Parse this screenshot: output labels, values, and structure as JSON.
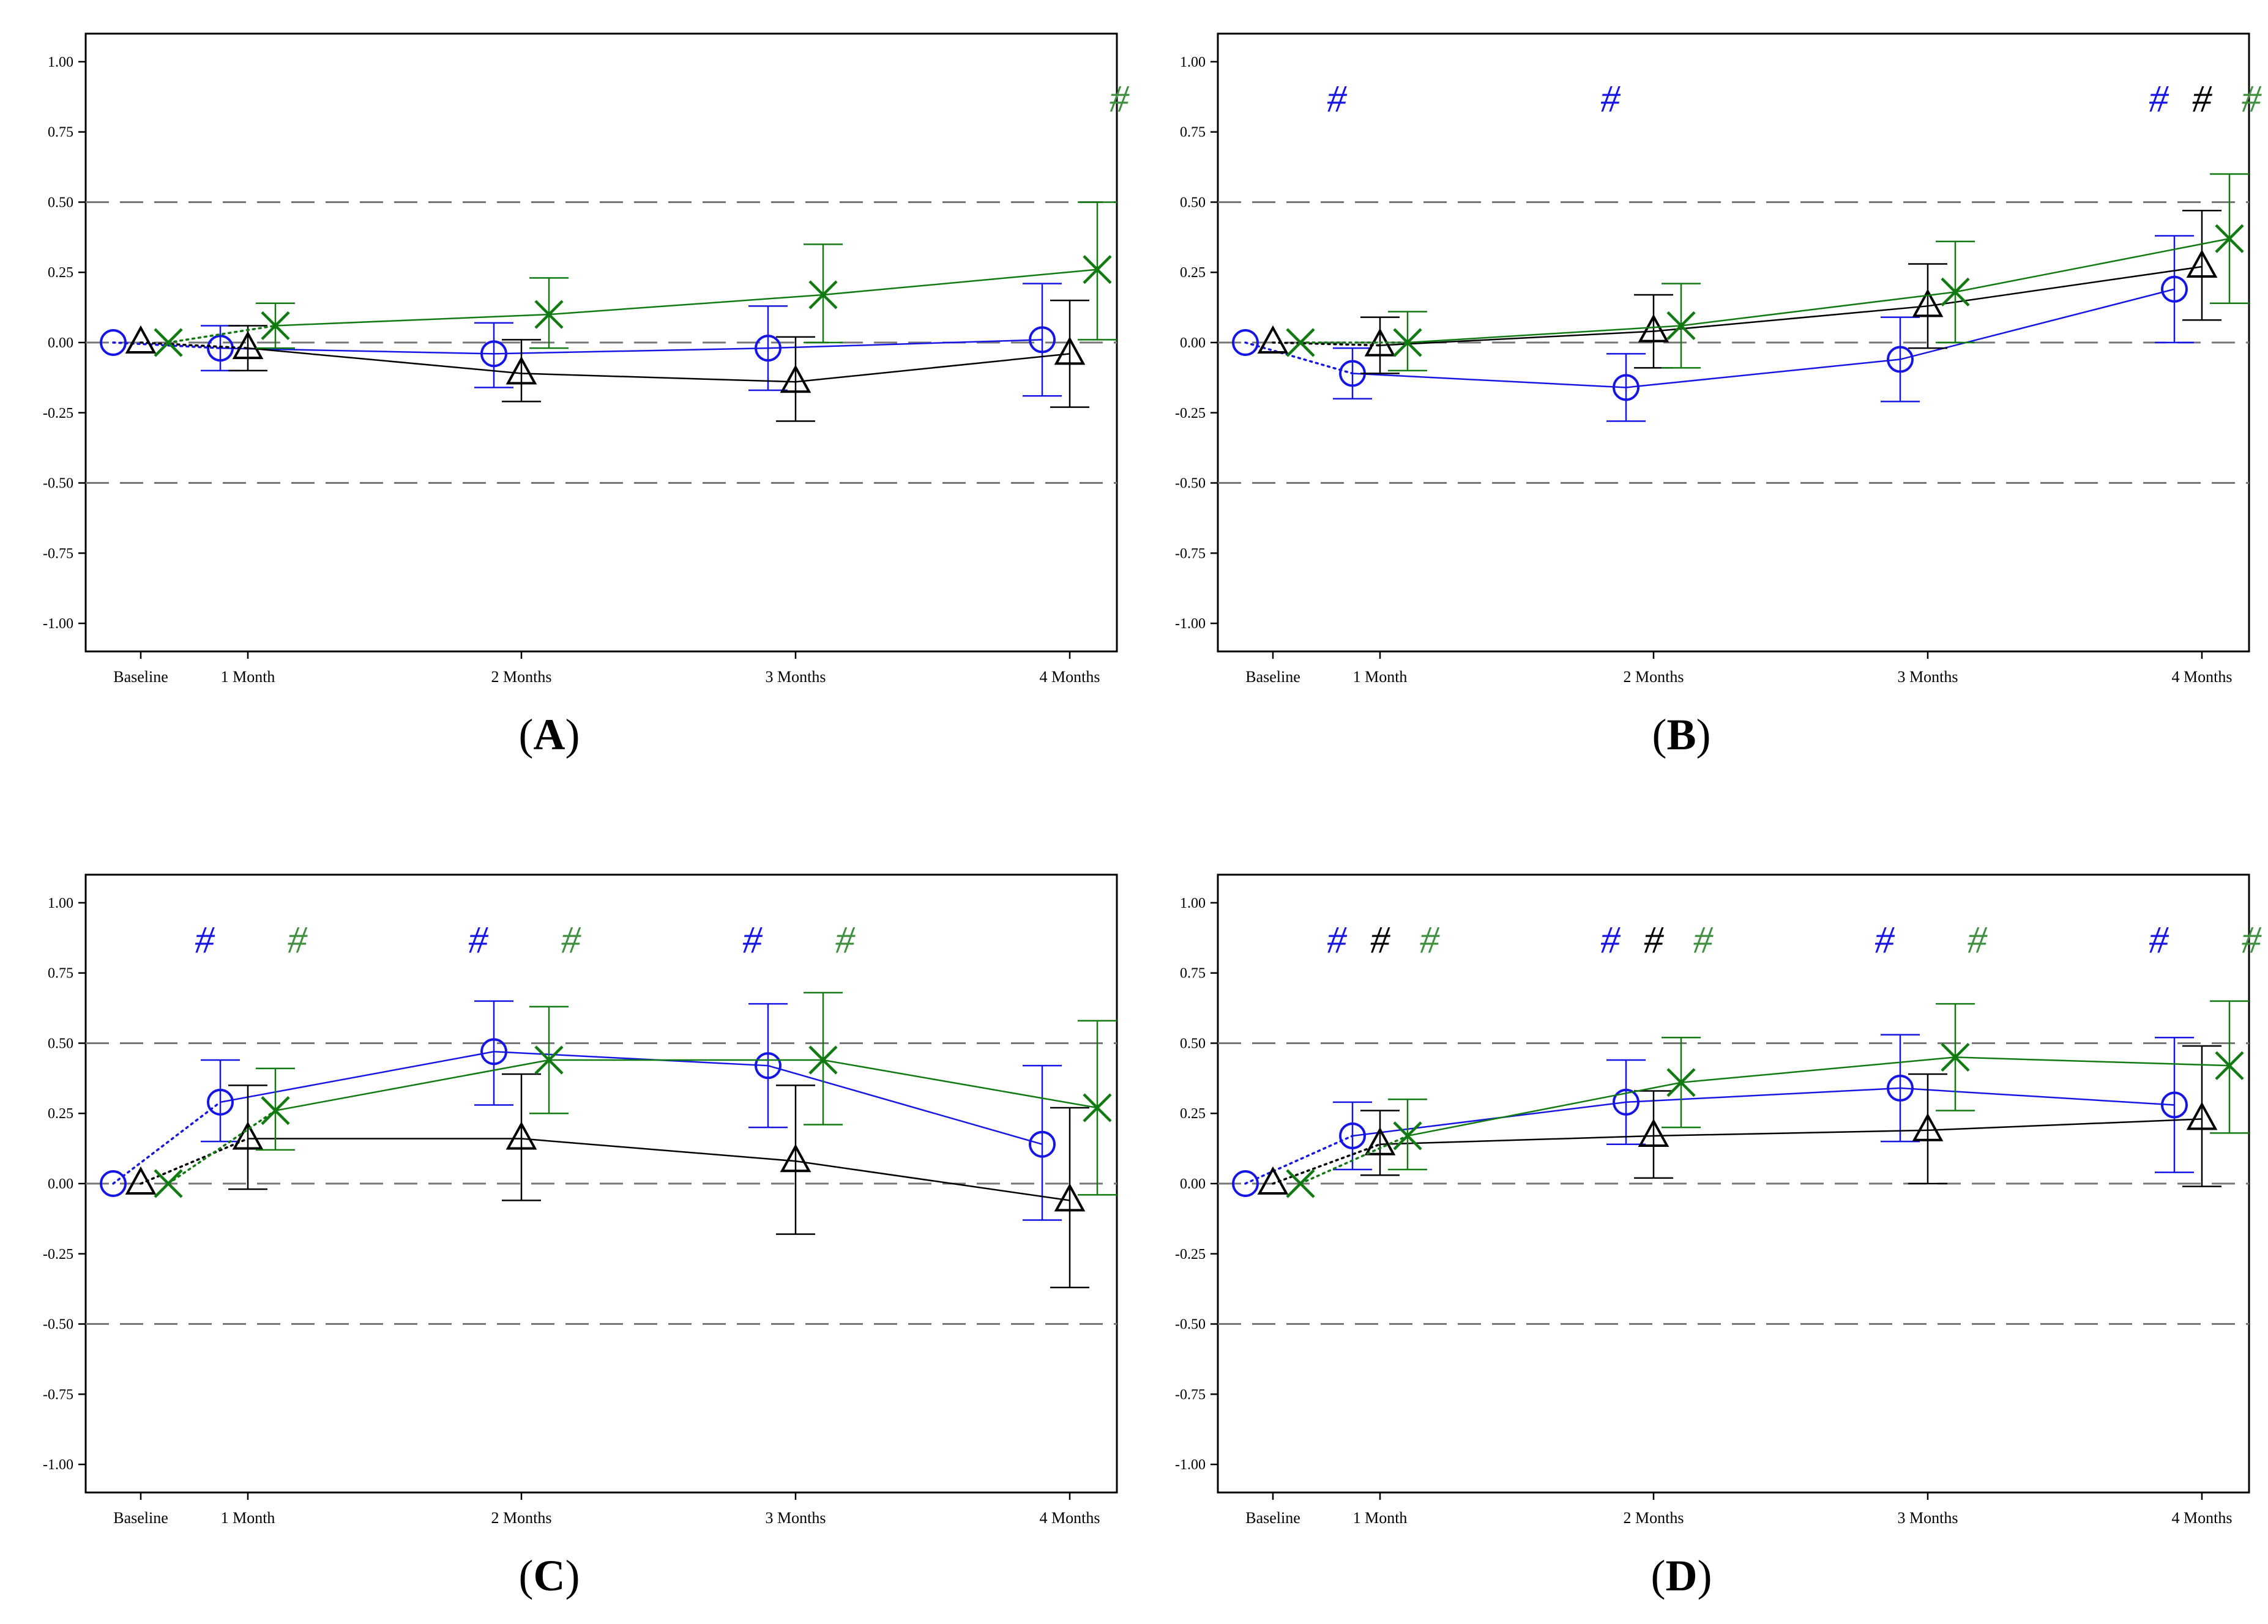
{
  "chart_data": [
    {
      "panel": "A",
      "caption_letter": "A",
      "type": "line",
      "categories": [
        "Baseline",
        "1 Month",
        "2 Months",
        "3 Months",
        "4 Months"
      ],
      "yticks": [
        "1.00",
        "0.75",
        "0.50",
        "0.25",
        "0.00",
        "-0.25",
        "-0.50",
        "-0.75",
        "-1.00"
      ],
      "ylim": [
        -1.1,
        1.1
      ],
      "reference_lines": [
        0.5,
        0.0,
        -0.5
      ],
      "series": [
        {
          "name": "circle",
          "marker": "circle",
          "color": "#1515e6",
          "values": [
            0.0,
            -0.02,
            -0.04,
            -0.02,
            0.01
          ],
          "lower": [
            null,
            -0.1,
            -0.16,
            -0.17,
            -0.19
          ],
          "upper": [
            null,
            0.06,
            0.07,
            0.13,
            0.21
          ]
        },
        {
          "name": "triangle",
          "marker": "triangle",
          "color": "#000000",
          "values": [
            0.0,
            -0.02,
            -0.11,
            -0.14,
            -0.04
          ],
          "lower": [
            null,
            -0.1,
            -0.21,
            -0.28,
            -0.23
          ],
          "upper": [
            null,
            0.06,
            0.01,
            0.02,
            0.15
          ]
        },
        {
          "name": "cross",
          "marker": "cross",
          "color": "#117a11",
          "values": [
            0.0,
            0.06,
            0.1,
            0.17,
            0.26
          ],
          "lower": [
            null,
            -0.02,
            -0.02,
            0.0,
            0.01
          ],
          "upper": [
            null,
            0.14,
            0.23,
            0.35,
            0.5
          ]
        }
      ],
      "significance": [
        {
          "category": "4 Months",
          "series": "cross",
          "symbol": "#"
        }
      ]
    },
    {
      "panel": "B",
      "caption_letter": "B",
      "type": "line",
      "categories": [
        "Baseline",
        "1 Month",
        "2 Months",
        "3 Months",
        "4 Months"
      ],
      "yticks": [
        "1.00",
        "0.75",
        "0.50",
        "0.25",
        "0.00",
        "-0.25",
        "-0.50",
        "-0.75",
        "-1.00"
      ],
      "ylim": [
        -1.1,
        1.1
      ],
      "reference_lines": [
        0.5,
        0.0,
        -0.5
      ],
      "series": [
        {
          "name": "circle",
          "marker": "circle",
          "color": "#1515e6",
          "values": [
            0.0,
            -0.11,
            -0.16,
            -0.06,
            0.19
          ],
          "lower": [
            null,
            -0.2,
            -0.28,
            -0.21,
            0.0
          ],
          "upper": [
            null,
            -0.02,
            -0.04,
            0.09,
            0.38
          ]
        },
        {
          "name": "triangle",
          "marker": "triangle",
          "color": "#000000",
          "values": [
            0.0,
            -0.01,
            0.04,
            0.13,
            0.27
          ],
          "lower": [
            null,
            -0.11,
            -0.09,
            -0.02,
            0.08
          ],
          "upper": [
            null,
            0.09,
            0.17,
            0.28,
            0.47
          ]
        },
        {
          "name": "cross",
          "marker": "cross",
          "color": "#117a11",
          "values": [
            0.0,
            0.0,
            0.06,
            0.18,
            0.37
          ],
          "lower": [
            null,
            -0.1,
            -0.09,
            0.0,
            0.14
          ],
          "upper": [
            null,
            0.11,
            0.21,
            0.36,
            0.6
          ]
        }
      ],
      "significance": [
        {
          "category": "1 Month",
          "series": "circle",
          "symbol": "#"
        },
        {
          "category": "2 Months",
          "series": "circle",
          "symbol": "#"
        },
        {
          "category": "4 Months",
          "series": "circle",
          "symbol": "#"
        },
        {
          "category": "4 Months",
          "series": "triangle",
          "symbol": "#"
        },
        {
          "category": "4 Months",
          "series": "cross",
          "symbol": "#"
        }
      ]
    },
    {
      "panel": "C",
      "caption_letter": "C",
      "type": "line",
      "categories": [
        "Baseline",
        "1 Month",
        "2 Months",
        "3 Months",
        "4 Months"
      ],
      "yticks": [
        "1.00",
        "0.75",
        "0.50",
        "0.25",
        "0.00",
        "-0.25",
        "-0.50",
        "-0.75",
        "-1.00"
      ],
      "ylim": [
        -1.1,
        1.1
      ],
      "reference_lines": [
        0.5,
        0.0,
        -0.5
      ],
      "series": [
        {
          "name": "circle",
          "marker": "circle",
          "color": "#1515e6",
          "values": [
            0.0,
            0.29,
            0.47,
            0.42,
            0.14
          ],
          "lower": [
            null,
            0.15,
            0.28,
            0.2,
            -0.13
          ],
          "upper": [
            null,
            0.44,
            0.65,
            0.64,
            0.42
          ]
        },
        {
          "name": "triangle",
          "marker": "triangle",
          "color": "#000000",
          "values": [
            0.0,
            0.16,
            0.16,
            0.08,
            -0.06
          ],
          "lower": [
            null,
            -0.02,
            -0.06,
            -0.18,
            -0.37
          ],
          "upper": [
            null,
            0.35,
            0.39,
            0.35,
            0.27
          ]
        },
        {
          "name": "cross",
          "marker": "cross",
          "color": "#117a11",
          "values": [
            0.0,
            0.26,
            0.44,
            0.44,
            0.27
          ],
          "lower": [
            null,
            0.12,
            0.25,
            0.21,
            -0.04
          ],
          "upper": [
            null,
            0.41,
            0.63,
            0.68,
            0.58
          ]
        }
      ],
      "significance": [
        {
          "category": "1 Month",
          "series": "circle",
          "symbol": "#"
        },
        {
          "category": "1 Month",
          "series": "cross",
          "symbol": "#"
        },
        {
          "category": "2 Months",
          "series": "circle",
          "symbol": "#"
        },
        {
          "category": "2 Months",
          "series": "cross",
          "symbol": "#"
        },
        {
          "category": "3 Months",
          "series": "circle",
          "symbol": "#"
        },
        {
          "category": "3 Months",
          "series": "cross",
          "symbol": "#"
        }
      ]
    },
    {
      "panel": "D",
      "caption_letter": "D",
      "type": "line",
      "categories": [
        "Baseline",
        "1 Month",
        "2 Months",
        "3 Months",
        "4 Months"
      ],
      "yticks": [
        "1.00",
        "0.75",
        "0.50",
        "0.25",
        "0.00",
        "-0.25",
        "-0.50",
        "-0.75",
        "-1.00"
      ],
      "ylim": [
        -1.1,
        1.1
      ],
      "reference_lines": [
        0.5,
        0.0,
        -0.5
      ],
      "series": [
        {
          "name": "circle",
          "marker": "circle",
          "color": "#1515e6",
          "values": [
            0.0,
            0.17,
            0.29,
            0.34,
            0.28
          ],
          "lower": [
            null,
            0.05,
            0.14,
            0.15,
            0.04
          ],
          "upper": [
            null,
            0.29,
            0.44,
            0.53,
            0.52
          ]
        },
        {
          "name": "triangle",
          "marker": "triangle",
          "color": "#000000",
          "values": [
            0.0,
            0.14,
            0.17,
            0.19,
            0.23
          ],
          "lower": [
            null,
            0.03,
            0.02,
            0.0,
            -0.01
          ],
          "upper": [
            null,
            0.26,
            0.33,
            0.39,
            0.49
          ]
        },
        {
          "name": "cross",
          "marker": "cross",
          "color": "#117a11",
          "values": [
            0.0,
            0.17,
            0.36,
            0.45,
            0.42
          ],
          "lower": [
            null,
            0.05,
            0.2,
            0.26,
            0.18
          ],
          "upper": [
            null,
            0.3,
            0.52,
            0.64,
            0.65
          ]
        }
      ],
      "significance": [
        {
          "category": "1 Month",
          "series": "circle",
          "symbol": "#"
        },
        {
          "category": "1 Month",
          "series": "triangle",
          "symbol": "#"
        },
        {
          "category": "1 Month",
          "series": "cross",
          "symbol": "#"
        },
        {
          "category": "2 Months",
          "series": "circle",
          "symbol": "#"
        },
        {
          "category": "2 Months",
          "series": "triangle",
          "symbol": "#"
        },
        {
          "category": "2 Months",
          "series": "cross",
          "symbol": "#"
        },
        {
          "category": "3 Months",
          "series": "circle",
          "symbol": "#"
        },
        {
          "category": "3 Months",
          "series": "cross",
          "symbol": "#"
        },
        {
          "category": "4 Months",
          "series": "circle",
          "symbol": "#"
        },
        {
          "category": "4 Months",
          "series": "cross",
          "symbol": "#"
        }
      ]
    }
  ]
}
